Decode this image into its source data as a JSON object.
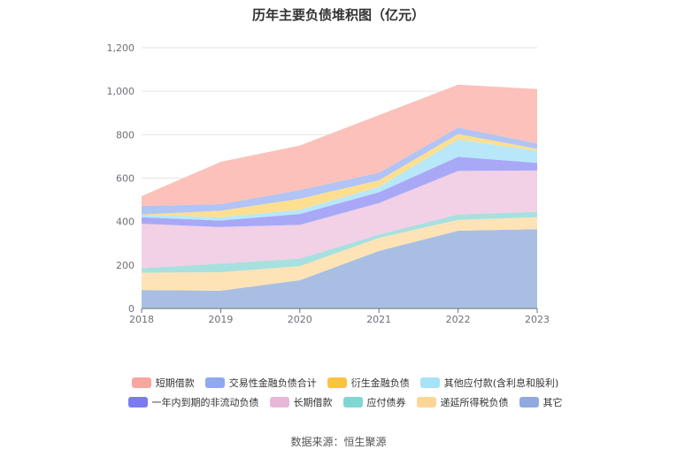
{
  "chart_data": {
    "type": "area",
    "stacked": true,
    "title": "历年主要负债堆积图（亿元）",
    "x": [
      "2018",
      "2019",
      "2020",
      "2021",
      "2022",
      "2023"
    ],
    "ylim": [
      0,
      1200
    ],
    "yticks": [
      "0",
      "200",
      "400",
      "600",
      "800",
      "1,000",
      "1,200"
    ],
    "grid": true,
    "legend_position": "bottom",
    "series": [
      {
        "name": "其它",
        "color": "#a8bfe3",
        "values": [
          85,
          82,
          130,
          265,
          358,
          365
        ]
      },
      {
        "name": "递延所得税负债",
        "color": "#fde3b6",
        "values": [
          80,
          85,
          65,
          60,
          50,
          55
        ]
      },
      {
        "name": "应付债券",
        "color": "#a8e0df",
        "values": [
          20,
          40,
          35,
          15,
          25,
          25
        ]
      },
      {
        "name": "长期借款",
        "color": "#f2d0e5",
        "values": [
          205,
          168,
          155,
          145,
          200,
          190
        ]
      },
      {
        "name": "一年内到期的非流动负债",
        "color": "#a8a8f7",
        "values": [
          30,
          30,
          50,
          50,
          65,
          35
        ]
      },
      {
        "name": "其他应付款(含利息和股利)",
        "color": "#b8e7fa",
        "values": [
          12,
          15,
          20,
          25,
          80,
          55
        ]
      },
      {
        "name": "衍生金融负债",
        "color": "#fddf8f",
        "values": [
          0,
          30,
          50,
          30,
          25,
          10
        ]
      },
      {
        "name": "交易性金融负债合计",
        "color": "#b1c4f5",
        "values": [
          40,
          30,
          40,
          35,
          30,
          25
        ]
      },
      {
        "name": "短期借款",
        "color": "#fcc1ba",
        "values": [
          45,
          195,
          205,
          265,
          197,
          250
        ]
      }
    ]
  },
  "legend": {
    "items": [
      {
        "name": "短期借款",
        "color": "#f8a69e"
      },
      {
        "name": "交易性金融负债合计",
        "color": "#8fa8f0"
      },
      {
        "name": "衍生金融负债",
        "color": "#fac440"
      },
      {
        "name": "其他应付款(含利息和股利)",
        "color": "#a6e3f8"
      },
      {
        "name": "一年内到期的非流动负债",
        "color": "#7b7bf0"
      },
      {
        "name": "长期借款",
        "color": "#e8b7d8"
      },
      {
        "name": "应付债券",
        "color": "#80d6d3"
      },
      {
        "name": "递延所得税负债",
        "color": "#fdd697"
      },
      {
        "name": "其它",
        "color": "#8eaade"
      }
    ]
  },
  "source": "数据来源：恒生聚源"
}
